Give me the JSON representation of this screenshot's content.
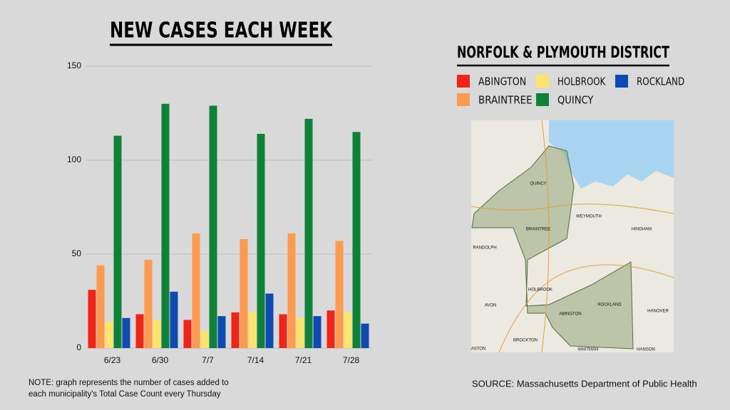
{
  "chart_data": {
    "type": "bar",
    "title": "NEW CASES EACH WEEK",
    "categories": [
      "6/23",
      "6/30",
      "7/7",
      "7/14",
      "7/21",
      "7/28"
    ],
    "series": [
      {
        "name": "ABINGTON",
        "color": "#f02418",
        "values": [
          31,
          18,
          15,
          19,
          18,
          20
        ]
      },
      {
        "name": "BRAINTREE",
        "color": "#fc9a50",
        "values": [
          44,
          47,
          61,
          58,
          61,
          57
        ]
      },
      {
        "name": "HOLBROOK",
        "color": "#fde36b",
        "values": [
          14,
          15,
          9,
          19,
          16,
          19
        ]
      },
      {
        "name": "QUINCY",
        "color": "#0e8138",
        "values": [
          113,
          130,
          129,
          114,
          122,
          115
        ]
      },
      {
        "name": "ROCKLAND",
        "color": "#0d4ab2",
        "values": [
          16,
          30,
          17,
          29,
          17,
          13
        ]
      }
    ],
    "ylim": [
      0,
      150
    ],
    "yticks": [
      0,
      50,
      100,
      150
    ],
    "grid": true
  },
  "panel": {
    "title": "NORFOLK & PLYMOUTH DISTRICT",
    "map_labels": [
      "QUINCY",
      "WEYMOUTH",
      "BRAINTREE",
      "RANDOLPH",
      "HINGHAM",
      "HOLBROOK",
      "ROCKLAND",
      "ABINGTON",
      "AVON",
      "HANOVER",
      "BROCKTON",
      "WHITMAN",
      "HANSON",
      "ASTON"
    ]
  },
  "note": [
    "NOTE: graph represents the number of cases added to",
    "each municipality's Total Case Count every Thursday"
  ],
  "source": "SOURCE: Massachusetts Department of Public Health"
}
